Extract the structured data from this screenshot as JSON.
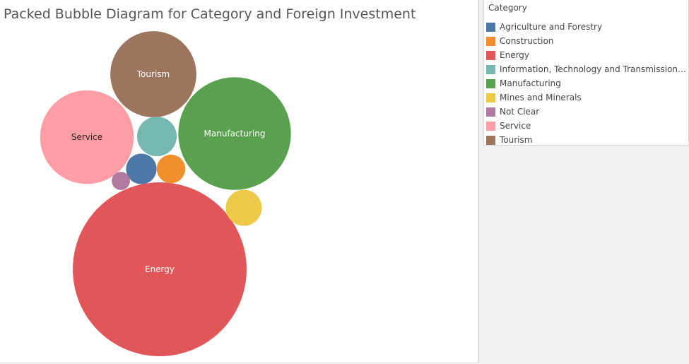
{
  "chart_data": {
    "type": "packed-bubble",
    "title": "Packed Bubble Diagram for Category and Foreign Investment",
    "size_measure": "Foreign Investment",
    "legend": {
      "title": "Category",
      "placement": "right-top",
      "items": [
        {
          "label": "Agriculture and Forestry",
          "display": "Agriculture and Forestry",
          "color": "#4e79a7"
        },
        {
          "label": "Construction",
          "display": "Construction",
          "color": "#f28e2b"
        },
        {
          "label": "Energy",
          "display": "Energy",
          "color": "#e15759"
        },
        {
          "label": "Information, Technology and Transmission Technology",
          "display": "Information, Technology and Transmission Te..",
          "color": "#76b7b2"
        },
        {
          "label": "Manufacturing",
          "display": "Manufacturing",
          "color": "#59a14f"
        },
        {
          "label": "Mines and Minerals",
          "display": "Mines and Minerals",
          "color": "#edc948"
        },
        {
          "label": "Not Clear",
          "display": "Not Clear",
          "color": "#b07aa1"
        },
        {
          "label": "Service",
          "display": "Service",
          "color": "#ff9da7"
        },
        {
          "label": "Tourism",
          "display": "Tourism",
          "color": "#9c755f"
        }
      ]
    },
    "bubbles": [
      {
        "category": "Energy",
        "relative_size": 1.0,
        "label": "Energy"
      },
      {
        "category": "Manufacturing",
        "relative_size": 0.42,
        "label": "Manufacturing"
      },
      {
        "category": "Service",
        "relative_size": 0.29,
        "label": "Service"
      },
      {
        "category": "Tourism",
        "relative_size": 0.245,
        "label": "Tourism"
      },
      {
        "category": "Information, Technology and Transmission Technology",
        "relative_size": 0.052,
        "label": ""
      },
      {
        "category": "Mines and Minerals",
        "relative_size": 0.043,
        "label": ""
      },
      {
        "category": "Agriculture and Forestry",
        "relative_size": 0.031,
        "label": ""
      },
      {
        "category": "Construction",
        "relative_size": 0.027,
        "label": ""
      },
      {
        "category": "Not Clear",
        "relative_size": 0.011,
        "label": ""
      }
    ]
  }
}
